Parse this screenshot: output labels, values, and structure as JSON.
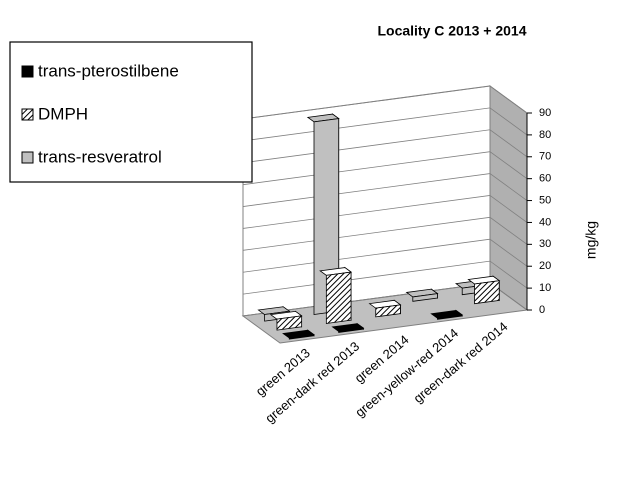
{
  "chart_data": {
    "type": "bar3d",
    "title": "Locality C  2013 + 2014",
    "y_label": "mg/kg",
    "categories": [
      "green 2013",
      "green-dark red 2013",
      "green 2014",
      "green-yellow-red 2014",
      "green-dark red 2014"
    ],
    "series": [
      {
        "name": "trans-pterostilbene",
        "color": "#000000",
        "values": [
          0.5,
          0.5,
          null,
          0.5,
          null
        ]
      },
      {
        "name": "DMPH",
        "color": "#000000",
        "values": [
          5,
          22,
          4,
          null,
          9
        ]
      },
      {
        "name": "trans-resveratrol",
        "color": "#c0c0c0",
        "values": [
          3,
          88,
          null,
          2,
          3
        ]
      }
    ],
    "ylim": [
      0,
      90
    ],
    "yticks": [
      0,
      10,
      20,
      30,
      40,
      50,
      60,
      70,
      80,
      90
    ],
    "grid": true
  }
}
